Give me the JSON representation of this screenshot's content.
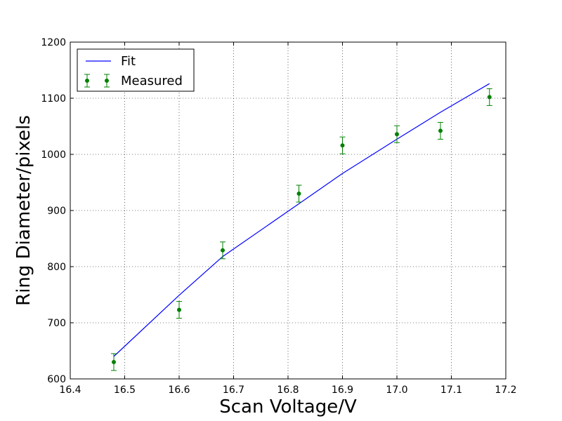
{
  "chart_data": {
    "type": "line",
    "xlabel": "Scan Voltage/V",
    "ylabel": "Ring Diameter/pixels",
    "xlim": [
      16.4,
      17.2
    ],
    "ylim": [
      600,
      1200
    ],
    "x_ticks": [
      "16.4",
      "16.5",
      "16.6",
      "16.7",
      "16.8",
      "16.9",
      "17.0",
      "17.1",
      "17.2"
    ],
    "y_ticks": [
      "600",
      "700",
      "800",
      "900",
      "1000",
      "1100",
      "1200"
    ],
    "grid": true,
    "legend_position": "top-left",
    "series": [
      {
        "name": "Fit",
        "kind": "line",
        "color": "#0000ff",
        "x": [
          16.48,
          16.6,
          16.68,
          16.82,
          16.9,
          17.0,
          17.08,
          17.17
        ],
        "y": [
          640,
          749,
          818,
          912,
          966,
          1027,
          1075,
          1126
        ]
      },
      {
        "name": "Measured",
        "kind": "errorbar",
        "color": "#008000",
        "x": [
          16.48,
          16.6,
          16.68,
          16.82,
          16.9,
          17.0,
          17.08,
          17.17
        ],
        "y": [
          630,
          723,
          829,
          930,
          1016,
          1036,
          1042,
          1102
        ],
        "yerr": [
          15,
          15,
          15,
          15,
          15,
          15,
          15,
          15
        ]
      }
    ]
  }
}
